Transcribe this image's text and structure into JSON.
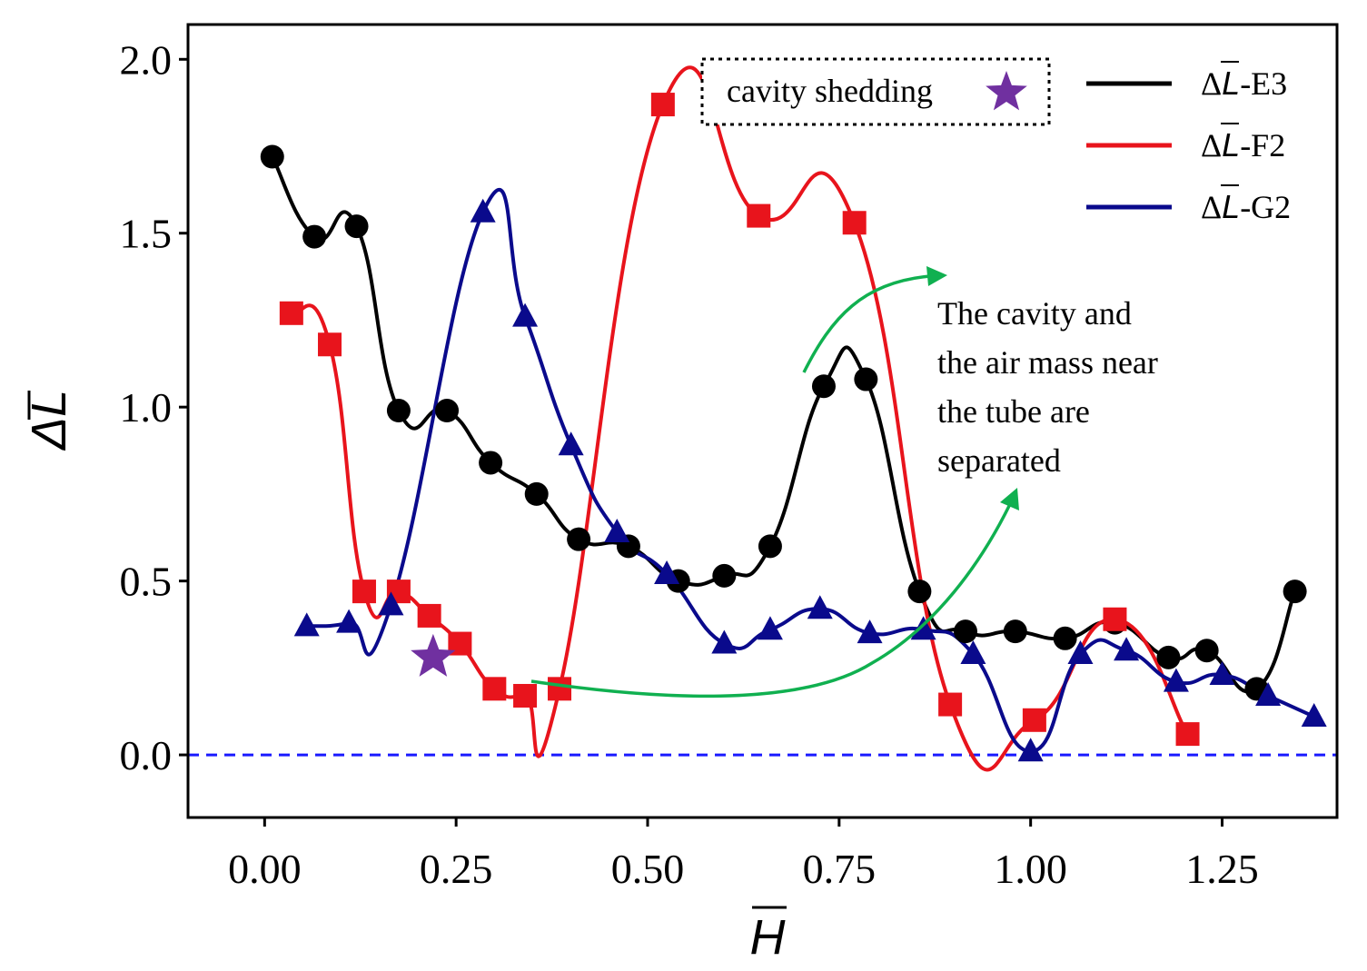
{
  "chart_data": {
    "type": "line",
    "xlabel": "H",
    "ylabel": "ΔL",
    "xlim": [
      -0.1,
      1.4
    ],
    "ylim": [
      -0.18,
      2.1
    ],
    "x_ticks": [
      0.0,
      0.25,
      0.5,
      0.75,
      1.0,
      1.25
    ],
    "x_tick_labels": [
      "0.00",
      "0.25",
      "0.50",
      "0.75",
      "1.00",
      "1.25"
    ],
    "y_ticks": [
      0.0,
      0.5,
      1.0,
      1.5,
      2.0
    ],
    "y_tick_labels": [
      "0.0",
      "0.5",
      "1.0",
      "1.5",
      "2.0"
    ],
    "legend_position": "top-right",
    "reference_line": {
      "y": 0.0,
      "style": "dashed",
      "color": "#1a1aff"
    },
    "series": [
      {
        "name": "ΔL-E3",
        "legend_prefix": "Δ",
        "legend_symbol": "L",
        "legend_suffix": "-E3",
        "color": "#000000",
        "marker": "circle",
        "x": [
          0.01,
          0.065,
          0.12,
          0.175,
          0.238,
          0.295,
          0.355,
          0.41,
          0.475,
          0.54,
          0.6,
          0.66,
          0.73,
          0.785,
          0.855,
          0.915,
          0.98,
          1.045,
          1.11,
          1.18,
          1.23,
          1.295,
          1.345
        ],
        "y": [
          1.72,
          1.49,
          1.52,
          0.99,
          0.99,
          0.84,
          0.75,
          0.62,
          0.6,
          0.5,
          0.515,
          0.6,
          1.06,
          1.08,
          0.47,
          0.355,
          0.355,
          0.335,
          0.38,
          0.28,
          0.3,
          0.19,
          0.47
        ]
      },
      {
        "name": "ΔL-F2",
        "legend_prefix": "Δ",
        "legend_symbol": "L",
        "legend_suffix": "-F2",
        "color": "#e8141c",
        "marker": "square",
        "x": [
          0.035,
          0.085,
          0.13,
          0.175,
          0.215,
          0.255,
          0.3,
          0.34,
          0.385,
          0.52,
          0.645,
          0.77,
          0.895,
          1.005,
          1.11,
          1.205
        ],
        "y": [
          1.27,
          1.18,
          0.47,
          0.47,
          0.4,
          0.32,
          0.19,
          0.17,
          0.19,
          1.87,
          1.55,
          1.53,
          0.145,
          0.1,
          0.39,
          0.06
        ]
      },
      {
        "name": "ΔL-G2",
        "legend_prefix": "Δ",
        "legend_symbol": "L",
        "legend_suffix": "-G2",
        "color": "#0a0a8c",
        "marker": "triangle",
        "x": [
          0.055,
          0.11,
          0.165,
          0.285,
          0.34,
          0.4,
          0.46,
          0.525,
          0.6,
          0.66,
          0.725,
          0.79,
          0.86,
          0.925,
          1.0,
          1.065,
          1.125,
          1.19,
          1.25,
          1.31,
          1.37
        ],
        "y": [
          0.37,
          0.38,
          0.43,
          1.56,
          1.26,
          0.89,
          0.64,
          0.52,
          0.32,
          0.36,
          0.42,
          0.35,
          0.36,
          0.29,
          0.01,
          0.29,
          0.3,
          0.21,
          0.23,
          0.17,
          0.11
        ]
      }
    ],
    "annotations": {
      "shedding_label": "cavity shedding",
      "shedding_marker": {
        "x": 0.22,
        "y": 0.28,
        "color": "#7030a0",
        "shape": "star"
      },
      "note_lines": [
        "The cavity and",
        "the air mass near",
        "the tube are",
        "separated"
      ],
      "note_arrow_color": "#10b050"
    }
  }
}
